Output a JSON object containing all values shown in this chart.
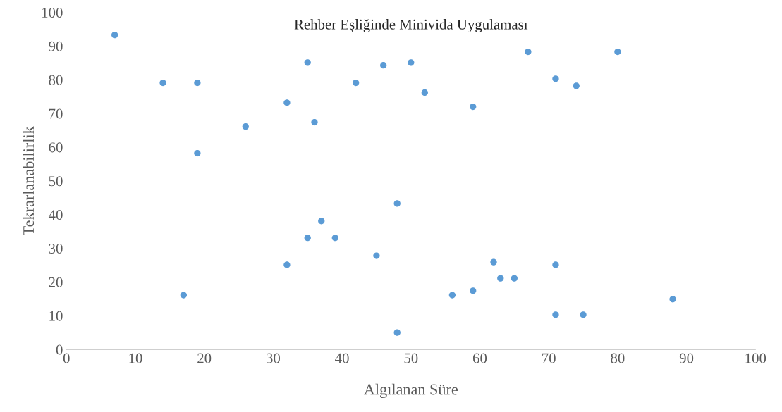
{
  "chart_data": {
    "type": "scatter",
    "title": "Rehber Eşliğinde Minivida Uygulaması",
    "xlabel": "Algılanan Süre",
    "ylabel": "Tekrarlanabilirlik",
    "x": [
      7,
      14,
      19,
      26,
      19,
      32,
      35,
      36,
      42,
      46,
      50,
      52,
      59,
      67,
      71,
      74,
      80,
      48,
      37,
      35,
      39,
      45,
      32,
      17,
      62,
      63,
      65,
      71,
      56,
      59,
      48,
      71,
      75,
      88
    ],
    "series": [
      {
        "color": "#5b9bd5",
        "values": [
          93.3,
          79.1,
          79.1,
          66.1,
          58.2,
          73.2,
          85.1,
          67.4,
          79.1,
          84.3,
          85.1,
          76.2,
          72.0,
          88.3,
          80.3,
          78.2,
          88.3,
          43.3,
          38.1,
          33.1,
          33.1,
          27.8,
          25.1,
          16.1,
          25.9,
          21.1,
          21.1,
          25.1,
          16.1,
          17.4,
          5.0,
          10.3,
          10.3,
          14.9
        ]
      }
    ],
    "xlim": [
      0,
      100
    ],
    "ylim": [
      0,
      100
    ],
    "xticks": [
      0,
      10,
      20,
      30,
      40,
      50,
      60,
      70,
      80,
      90,
      100
    ],
    "yticks": [
      0,
      10,
      20,
      30,
      40,
      50,
      60,
      70,
      80,
      90,
      100
    ],
    "marker": "circle",
    "grid": false
  }
}
